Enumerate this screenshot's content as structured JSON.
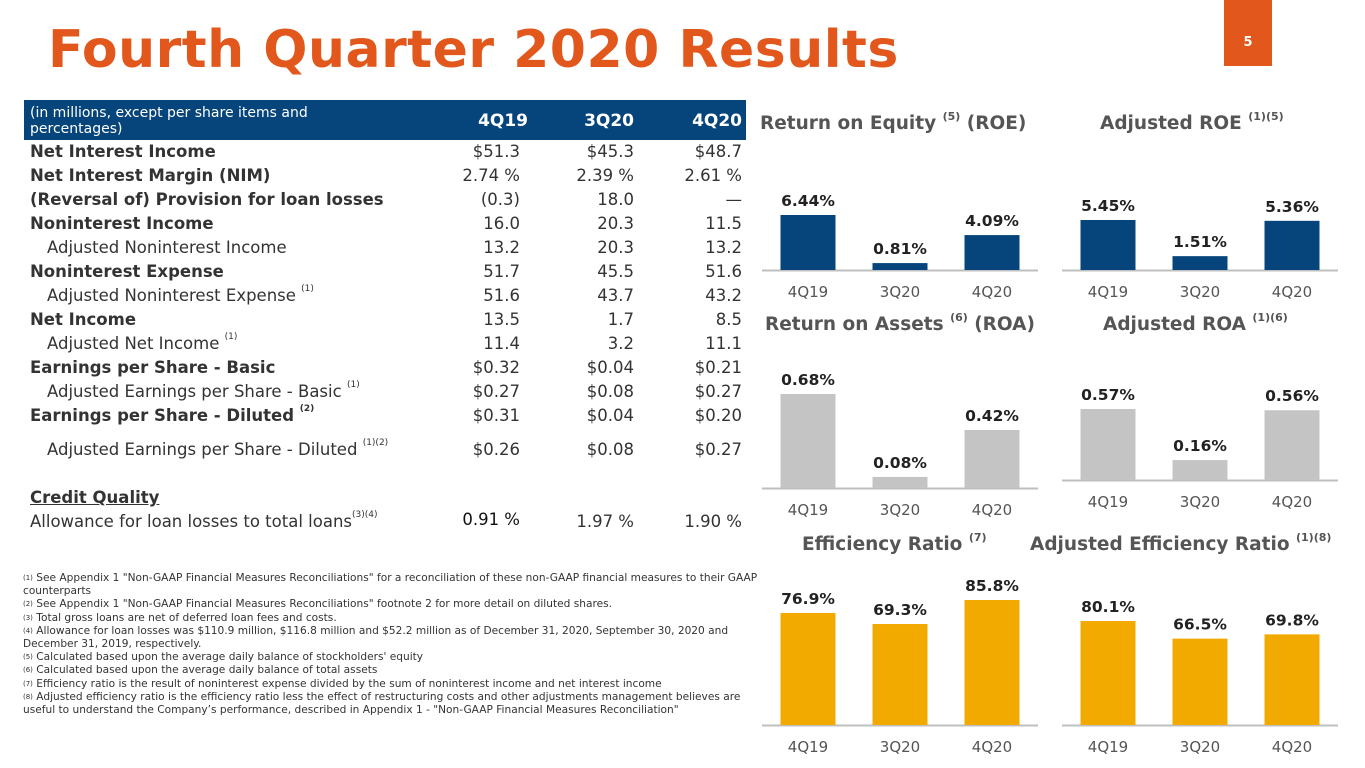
{
  "page": {
    "title": "Fourth Quarter 2020 Results",
    "page_number": "5"
  },
  "table": {
    "header_desc": "(in millions, except per share items and percentages)",
    "columns": [
      "4Q19",
      "3Q20",
      "4Q20"
    ],
    "rows": [
      {
        "label": "Net Interest Income",
        "sup": "",
        "values": [
          "$51.3",
          "$45.3",
          "$48.7"
        ]
      },
      {
        "label": "Net Interest Margin (NIM)",
        "sup": "",
        "values": [
          "2.74 %",
          "2.39 %",
          "2.61 %"
        ]
      },
      {
        "label": "(Reversal of) Provision for loan losses",
        "sup": "",
        "values": [
          "(0.3)",
          "18.0",
          "—"
        ]
      },
      {
        "label": "Noninterest Income",
        "sup": "",
        "values": [
          "16.0",
          "20.3",
          "11.5"
        ]
      },
      {
        "label": "Adjusted Noninterest Income",
        "sup": "",
        "values": [
          "13.2",
          "20.3",
          "13.2"
        ]
      },
      {
        "label": "Noninterest Expense",
        "sup": "",
        "values": [
          "51.7",
          "45.5",
          "51.6"
        ]
      },
      {
        "label": "Adjusted Noninterest Expense",
        "sup": "(1)",
        "values": [
          "51.6",
          "43.7",
          "43.2"
        ]
      },
      {
        "label": "Net Income",
        "sup": "",
        "values": [
          "13.5",
          "1.7",
          "8.5"
        ]
      },
      {
        "label": "Adjusted Net Income",
        "sup": "(1)",
        "values": [
          "11.4",
          "3.2",
          "11.1"
        ]
      },
      {
        "label": "Earnings per Share - Basic",
        "sup": "",
        "values": [
          "$0.32",
          "$0.04",
          "$0.21"
        ]
      },
      {
        "label": "Adjusted Earnings per Share - Basic",
        "sup": "(1)",
        "values": [
          "$0.27",
          "$0.08",
          "$0.27"
        ]
      },
      {
        "label": "Earnings per Share - Diluted",
        "sup": "(2)",
        "values": [
          "$0.31",
          "$0.04",
          "$0.20"
        ]
      },
      {
        "label": "Adjusted Earnings  per Share - Diluted",
        "sup": "(1)(2)",
        "values": [
          "$0.26",
          "$0.08",
          "$0.27"
        ]
      }
    ],
    "credit_quality_label": "Credit Quality",
    "allowance": {
      "label": "Allowance for loan losses to total loans",
      "sup": "(3)(4)",
      "values": [
        "0.91 %",
        "1.97 %",
        "1.90 %"
      ]
    }
  },
  "footnotes": [
    {
      "num": "(1)",
      "text": " See Appendix 1 \"Non-GAAP Financial Measures Reconciliations\" for a reconciliation of these non-GAAP financial measures to their GAAP counterparts"
    },
    {
      "num": "(2)",
      "text": "  See Appendix 1 \"Non-GAAP Financial Measures Reconciliations\" footnote 2 for more detail on diluted shares."
    },
    {
      "num": "(3)",
      "text": " Total gross loans are net of deferred loan fees and costs."
    },
    {
      "num": "(4)",
      "text": " Allowance for loan losses was $110.9 million, $116.8 million and $52.2 million as of December 31, 2020, September 30, 2020 and December 31, 2019, respectively."
    },
    {
      "num": "(5)",
      "text": " Calculated based upon the average daily balance of stockholders' equity"
    },
    {
      "num": "(6)",
      "text": " Calculated based upon the average daily balance of total assets"
    },
    {
      "num": "(7)",
      "text": " Efficiency ratio is the result of noninterest expense divided by the sum of noninterest income and net interest income"
    },
    {
      "num": "(8)",
      "text": " Adjusted efficiency ratio is the efficiency ratio less the effect of restructuring costs and other adjustments management believes are useful to understand the Company’s performance, described in Appendix 1 - \"Non-GAAP Financial Measures Reconciliation\""
    }
  ],
  "colors": {
    "orange": "#E2571B",
    "navy": "#06457B",
    "gray": "#C4C4C4",
    "gold": "#F2A900"
  },
  "chart_data": [
    {
      "type": "bar",
      "title": "Return on Equity",
      "title_sup": "(5)",
      "title_suffix": " (ROE)",
      "categories": [
        "4Q19",
        "3Q20",
        "4Q20"
      ],
      "values": [
        6.44,
        0.81,
        4.09
      ],
      "labels": [
        "6.44%",
        "0.81%",
        "4.09%"
      ],
      "color": "#06457B",
      "unit": "%"
    },
    {
      "type": "bar",
      "title": "Adjusted ROE",
      "title_sup": "(1)(5)",
      "title_suffix": "",
      "categories": [
        "4Q19",
        "3Q20",
        "4Q20"
      ],
      "values": [
        5.45,
        1.51,
        5.36
      ],
      "labels": [
        "5.45%",
        "1.51%",
        "5.36%"
      ],
      "color": "#06457B",
      "unit": "%"
    },
    {
      "type": "bar",
      "title": "Return on Assets",
      "title_sup": "(6)",
      "title_suffix": " (ROA)",
      "categories": [
        "4Q19",
        "3Q20",
        "4Q20"
      ],
      "values": [
        0.68,
        0.08,
        0.42
      ],
      "labels": [
        "0.68%",
        "0.08%",
        "0.42%"
      ],
      "color": "#C4C4C4",
      "unit": "%"
    },
    {
      "type": "bar",
      "title": "Adjusted ROA",
      "title_sup": "(1)(6)",
      "title_suffix": "",
      "categories": [
        "4Q19",
        "3Q20",
        "4Q20"
      ],
      "values": [
        0.57,
        0.16,
        0.56
      ],
      "labels": [
        "0.57%",
        "0.16%",
        "0.56%"
      ],
      "color": "#C4C4C4",
      "unit": "%"
    },
    {
      "type": "bar",
      "title": "Efficiency Ratio",
      "title_sup": "(7)",
      "title_suffix": "",
      "categories": [
        "4Q19",
        "3Q20",
        "4Q20"
      ],
      "values": [
        76.9,
        69.3,
        85.8
      ],
      "labels": [
        "76.9%",
        "69.3%",
        "85.8%"
      ],
      "color": "#F2A900",
      "unit": "%"
    },
    {
      "type": "bar",
      "title": "Adjusted Efficiency Ratio",
      "title_sup": "(1)(8)",
      "title_suffix": "",
      "categories": [
        "4Q19",
        "3Q20",
        "4Q20"
      ],
      "values": [
        80.1,
        66.5,
        69.8
      ],
      "labels": [
        "80.1%",
        "66.5%",
        "69.8%"
      ],
      "color": "#F2A900",
      "unit": "%"
    }
  ]
}
